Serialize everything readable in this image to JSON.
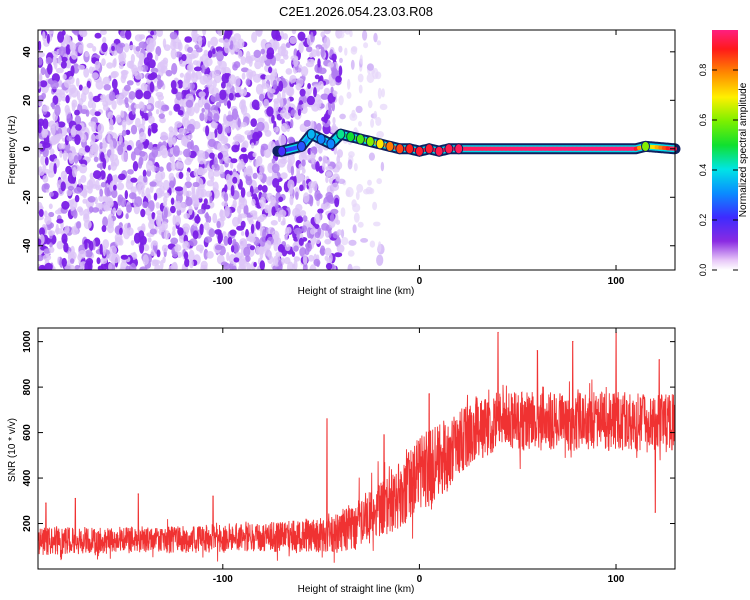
{
  "figure": {
    "title": "C2E1.2026.054.23.03.R08"
  },
  "chart_data": [
    {
      "type": "heatmap",
      "title": "C2E1.2026.054.23.03.R08",
      "xlabel": "Height of straight line (km)",
      "ylabel": "Frequency (Hz)",
      "xlim": [
        -194,
        130
      ],
      "ylim": [
        -50,
        49
      ],
      "xticks": [
        -100,
        0,
        100
      ],
      "xtick_labels": [
        "-100",
        "0",
        "100"
      ],
      "yticks": [
        -40,
        -20,
        0,
        20,
        40
      ],
      "ytick_labels": [
        "-40",
        "-20",
        "0",
        "20",
        "40"
      ],
      "colorbar": {
        "label": "Normalized spectral amplitude",
        "range": [
          0,
          0.96
        ],
        "ticks": [
          0.0,
          0.2,
          0.4,
          0.6,
          0.8
        ],
        "tick_labels": [
          "0.0",
          "0.2",
          "0.4",
          "0.6",
          "0.8"
        ],
        "colormap": "rainbow (white-purple-blue-cyan-green-yellow-red-magenta)"
      },
      "noise_region_end_km": -40,
      "signal_line": {
        "description": "dominant near-zero-Doppler echo ridge",
        "x": [
          -70,
          -60,
          -55,
          -50,
          -45,
          -40,
          -35,
          -30,
          -25,
          -20,
          -15,
          -10,
          -5,
          0,
          5,
          10,
          15,
          20,
          60,
          100,
          110,
          115,
          130
        ],
        "y": [
          -1,
          1,
          6,
          4,
          2,
          6,
          5,
          4,
          3,
          2,
          1,
          0,
          0,
          -1,
          0,
          -1,
          0,
          0,
          0,
          0,
          0,
          1,
          0
        ],
        "amplitude": [
          0.2,
          0.25,
          0.35,
          0.3,
          0.3,
          0.45,
          0.5,
          0.55,
          0.6,
          0.7,
          0.8,
          0.85,
          0.88,
          0.9,
          0.9,
          0.92,
          0.92,
          0.93,
          0.95,
          0.95,
          0.95,
          0.6,
          0.95
        ]
      }
    },
    {
      "type": "line",
      "xlabel": "Height of straight line (km)",
      "ylabel": "SNR (10 * v/v)",
      "xlim": [
        -194,
        130
      ],
      "ylim": [
        0,
        1060
      ],
      "xticks": [
        -100,
        0,
        100
      ],
      "xtick_labels": [
        "-100",
        "0",
        "100"
      ],
      "yticks": [
        200,
        400,
        600,
        800,
        1000
      ],
      "ytick_labels": [
        "200",
        "400",
        "600",
        "800",
        "1000"
      ],
      "series": [
        {
          "name": "SNR",
          "color": "#f03232",
          "x": [
            -194,
            -180,
            -160,
            -140,
            -120,
            -100,
            -80,
            -60,
            -40,
            -30,
            -20,
            -10,
            0,
            10,
            20,
            30,
            40,
            60,
            80,
            100,
            120,
            130
          ],
          "mean": [
            120,
            125,
            125,
            128,
            130,
            135,
            140,
            145,
            160,
            200,
            270,
            340,
            410,
            480,
            560,
            620,
            650,
            650,
            650,
            650,
            640,
            640
          ],
          "noise_amplitude": [
            60,
            60,
            60,
            60,
            60,
            65,
            65,
            70,
            90,
            110,
            140,
            160,
            170,
            170,
            150,
            140,
            130,
            130,
            130,
            130,
            130,
            130
          ],
          "peaks": [
            {
              "x": -190,
              "y": 290
            },
            {
              "x": -175,
              "y": 310
            },
            {
              "x": -143,
              "y": 330
            },
            {
              "x": -105,
              "y": 320
            },
            {
              "x": -47,
              "y": 660
            },
            {
              "x": -18,
              "y": 590
            },
            {
              "x": 5,
              "y": 770
            },
            {
              "x": 40,
              "y": 1040
            },
            {
              "x": 60,
              "y": 960
            },
            {
              "x": 78,
              "y": 1000
            },
            {
              "x": 100,
              "y": 1040
            },
            {
              "x": 122,
              "y": 920
            }
          ],
          "dips": [
            {
              "x": 120,
              "y": 250
            }
          ]
        }
      ]
    }
  ]
}
